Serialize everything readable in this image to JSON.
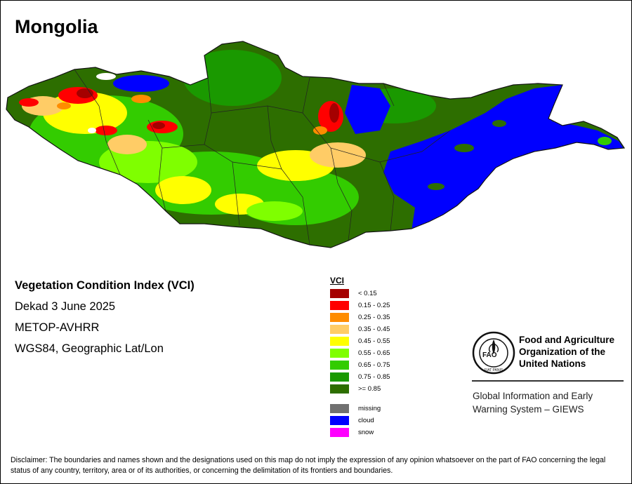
{
  "map_title": "Mongolia",
  "info": {
    "index_name": "Vegetation Condition Index (VCI)",
    "period": "Dekad 3 June 2025",
    "sensor": "METOP-AVHRR",
    "projection": "WGS84, Geographic Lat/Lon"
  },
  "legend": {
    "title": "VCI",
    "classes": [
      {
        "label": "< 0.15",
        "color": "#A50000"
      },
      {
        "label": "0.15 - 0.25",
        "color": "#FF0000"
      },
      {
        "label": "0.25 - 0.35",
        "color": "#FF8C00"
      },
      {
        "label": "0.35 - 0.45",
        "color": "#FFCC66"
      },
      {
        "label": "0.45 - 0.55",
        "color": "#FFFF00"
      },
      {
        "label": "0.55 - 0.65",
        "color": "#7FFF00"
      },
      {
        "label": "0.65 - 0.75",
        "color": "#33CC00"
      },
      {
        "label": "0.75 - 0.85",
        "color": "#1A9900"
      },
      {
        "label": ">= 0.85",
        "color": "#2D6E00"
      }
    ],
    "other_classes": [
      {
        "label": "missing",
        "color": "#707070"
      },
      {
        "label": "cloud",
        "color": "#0000FF"
      },
      {
        "label": "snow",
        "color": "#FF00FF"
      }
    ]
  },
  "organization": {
    "name_line1": "Food and Agriculture",
    "name_line2": "Organization of the",
    "name_line3": "United Nations",
    "logo_text": "FAO",
    "logo_motto": "FIAT PANIS",
    "system_line1": "Global Information and Early",
    "system_line2": "Warning System – GIEWS"
  },
  "disclaimer": "Disclaimer: The boundaries and names shown and the designations used on this map do not imply the expression of any opinion whatsoever on the part of FAO concerning the legal status of any country, territory, area or of its authorities, or concerning the delimitation of its frontiers and boundaries."
}
